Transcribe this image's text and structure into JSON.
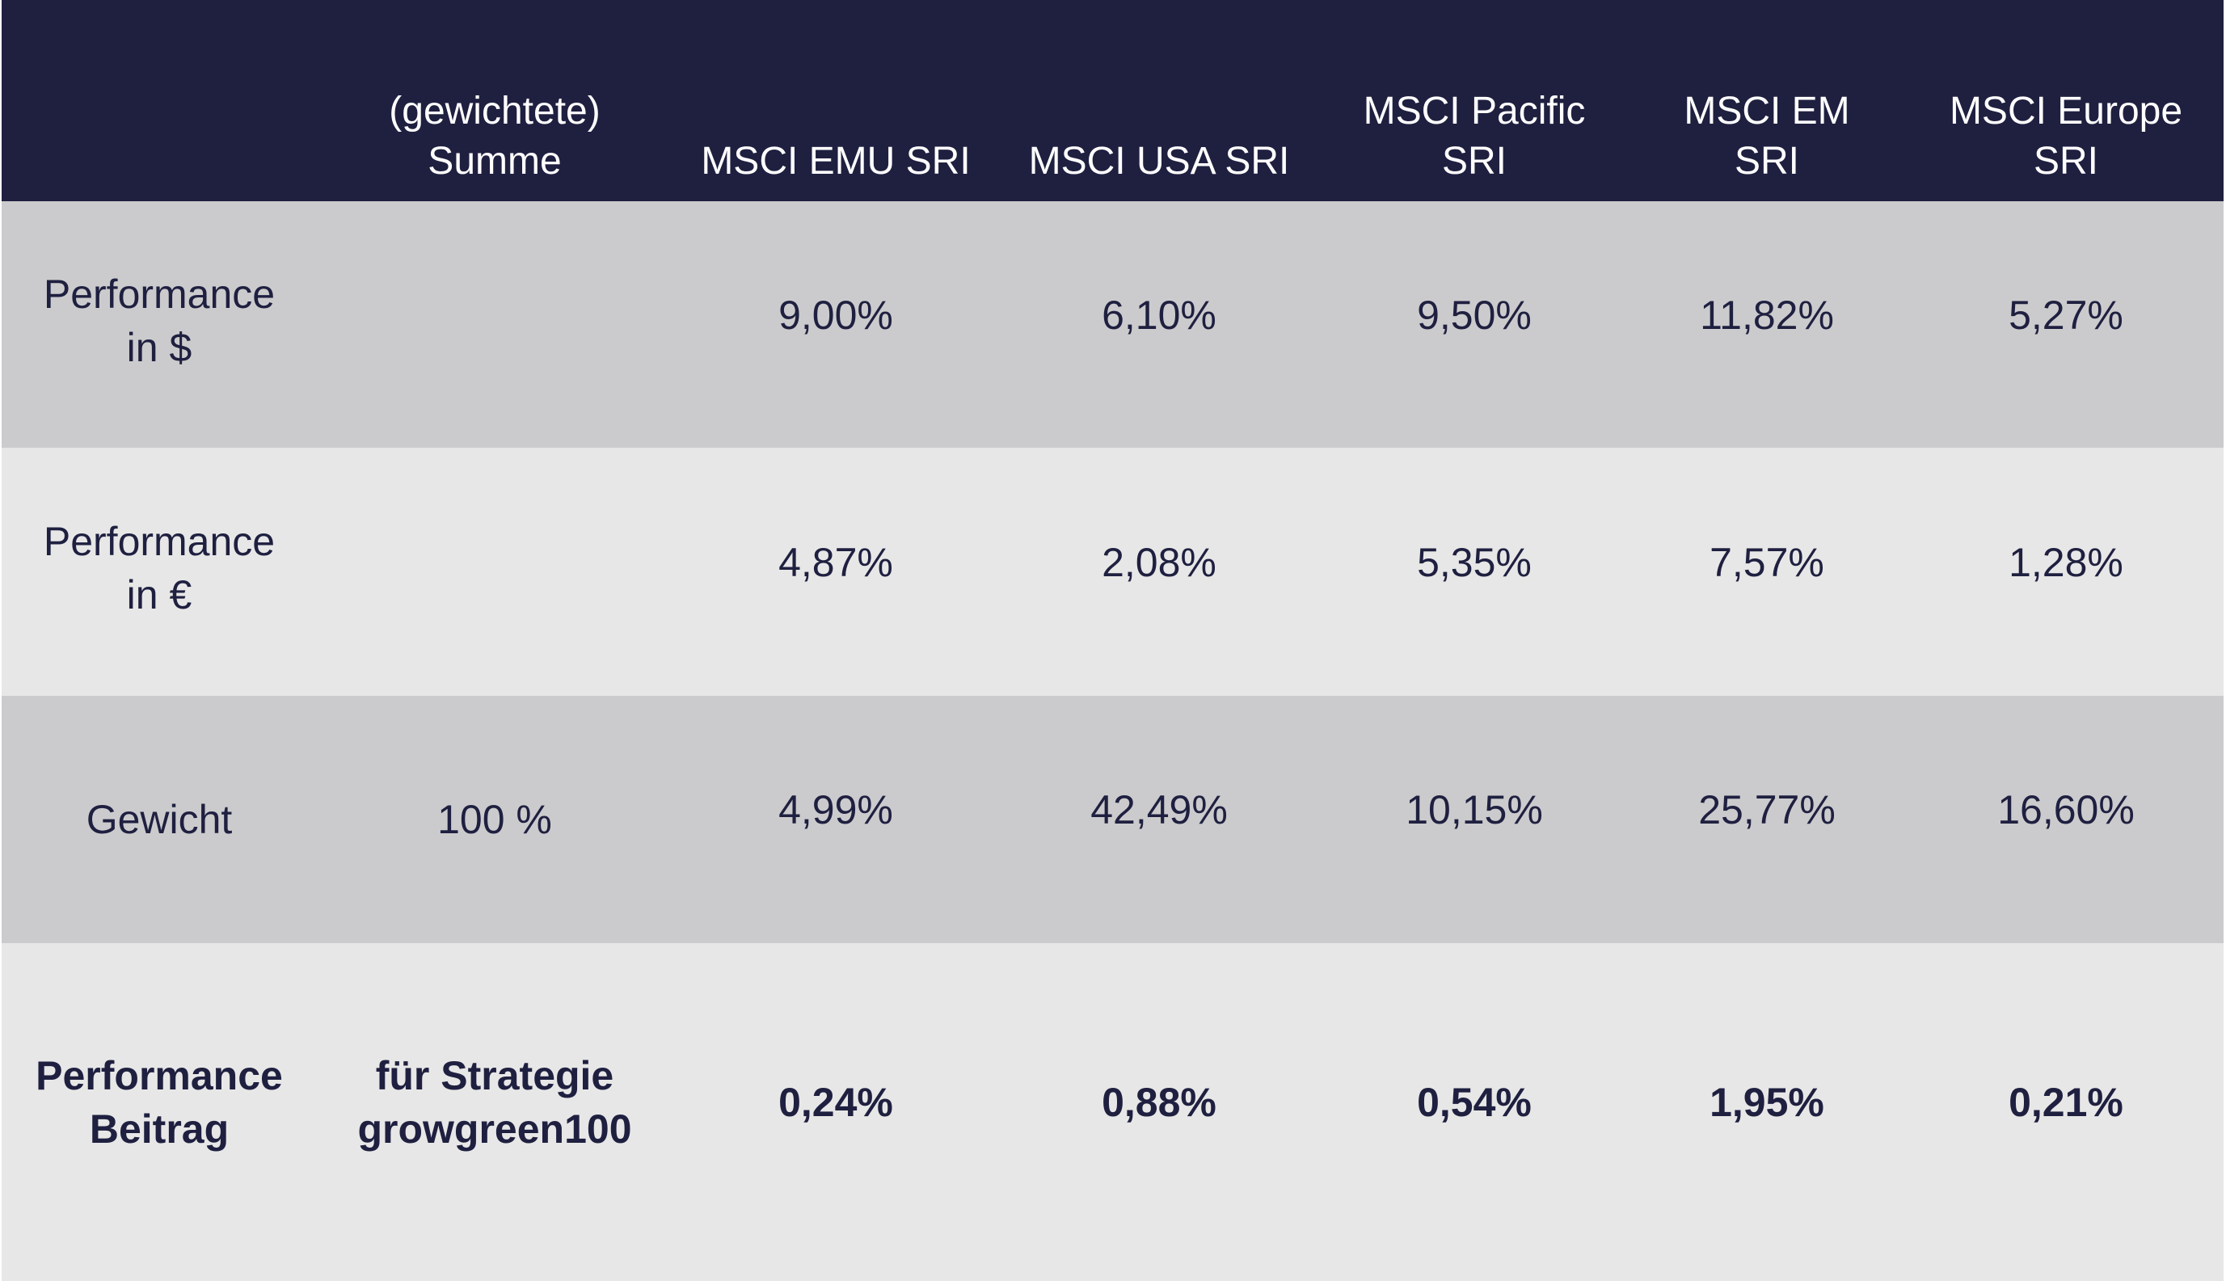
{
  "table": {
    "header": [
      "",
      "(gewichtete)\nSumme",
      "MSCI EMU SRI",
      "MSCI USA SRI",
      "MSCI Pacific\nSRI",
      "MSCI EM\nSRI",
      "MSCI Europe\nSRI"
    ],
    "rows": [
      {
        "label": "Performance\nin $",
        "sum": "",
        "values": [
          "9,00%",
          "6,10%",
          "9,50%",
          "11,82%",
          "5,27%"
        ]
      },
      {
        "label": "Performance\nin €",
        "sum": "",
        "values": [
          "4,87%",
          "2,08%",
          "5,35%",
          "7,57%",
          "1,28%"
        ]
      },
      {
        "label": "Gewicht",
        "sum": "100 %",
        "values": [
          "4,99%",
          "42,49%",
          "10,15%",
          "25,77%",
          "16,60%"
        ]
      },
      {
        "label": "Performance\nBeitrag",
        "sum": "für Strategie\ngrowgreen100",
        "values": [
          "0,24%",
          "0,88%",
          "0,54%",
          "1,95%",
          "0,21%"
        ]
      }
    ]
  },
  "colors": {
    "header_bg": "#1f2040",
    "row_dark": "#cbcbcd",
    "row_light": "#e7e7e7",
    "text": "#1f2040"
  }
}
